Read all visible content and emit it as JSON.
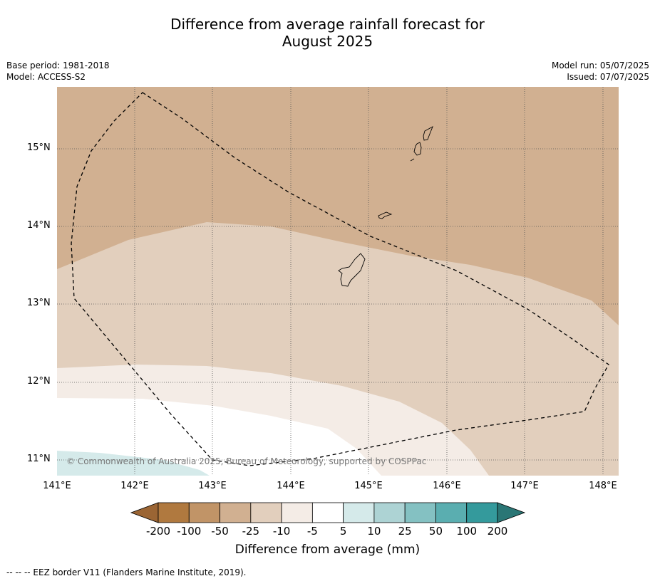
{
  "title_line1": "Difference from average rainfall forecast for",
  "title_line2": "August 2025",
  "meta_left": {
    "base_period": "Base period: 1981-2018",
    "model": "Model: ACCESS-S2"
  },
  "meta_right": {
    "model_run": "Model run: 05/07/2025",
    "issued": "Issued: 07/07/2025"
  },
  "copyright": "© Commonwealth of Australia 2025, Bureau of Meteorology, supported by COSPPac",
  "lat_ticks": [
    "15°N",
    "14°N",
    "13°N",
    "12°N",
    "11°N"
  ],
  "lon_ticks": [
    "141°E",
    "142°E",
    "143°E",
    "144°E",
    "145°E",
    "146°E",
    "147°E",
    "148°E"
  ],
  "colorbar": {
    "title": "Difference from average (mm)",
    "labels": [
      "-200",
      "-100",
      "-50",
      "-25",
      "-10",
      "-5",
      "5",
      "10",
      "25",
      "50",
      "100",
      "200"
    ],
    "colors": [
      "#9b6534",
      "#b0793f",
      "#c19467",
      "#d1b091",
      "#e2cfbd",
      "#f4ece6",
      "#ffffff",
      "#d5eaea",
      "#add3d4",
      "#84c1c2",
      "#5aaeb0",
      "#349a9c",
      "#2a7675"
    ]
  },
  "footnote": "--  --  -- EEZ border V11 (Flanders Marine Institute, 2019)."
}
